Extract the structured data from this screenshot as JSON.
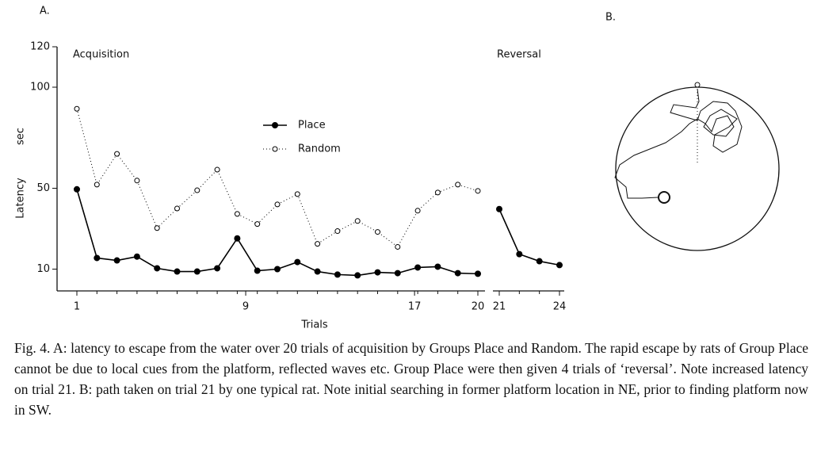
{
  "panel_labels": [
    "A.",
    "B."
  ],
  "chart_data": [
    {
      "type": "line",
      "title": "Acquisition",
      "xlabel": "Trials",
      "ylabel": [
        "Latency",
        "sec"
      ],
      "x": [
        1,
        1.95,
        2.9,
        3.85,
        4.8,
        5.75,
        6.7,
        7.65,
        8.6,
        9.55,
        10.5,
        11.45,
        12.4,
        13.35,
        14.3,
        15.25,
        16.2,
        17.15,
        18.1,
        19.05,
        20
      ],
      "xlim": [
        1,
        20
      ],
      "xticks": [
        1,
        9,
        17,
        20
      ],
      "ylim": [
        0,
        120
      ],
      "yticks": [
        10,
        50,
        100,
        120
      ],
      "legend": "upper center",
      "series": [
        {
          "name": "Place",
          "color": "#000000",
          "style": "solid-filled",
          "values": [
            49.5,
            15.5,
            14.3,
            16.2,
            10.4,
            8.8,
            8.8,
            10.4,
            25.2,
            9.2,
            10,
            13.5,
            8.8,
            7.3,
            6.9,
            8.4,
            8,
            10.8,
            11.2,
            8,
            7.7
          ]
        },
        {
          "name": "Random",
          "color": "#000000",
          "style": "dotted-open",
          "values": [
            89.3,
            51.8,
            67,
            53.8,
            30.3,
            40,
            49,
            59.2,
            37.3,
            32.3,
            42,
            47.1,
            22.5,
            28.8,
            33.8,
            28.4,
            21,
            38.9,
            47.9,
            51.8,
            48.7
          ]
        }
      ]
    },
    {
      "type": "line",
      "title": "Reversal",
      "x": [
        21,
        22,
        23,
        24
      ],
      "xlim": [
        21,
        24
      ],
      "xticks": [
        21,
        24
      ],
      "ylim": [
        0,
        120
      ],
      "series": [
        {
          "color": "#000000",
          "style": "solid-filled",
          "values": [
            39.7,
            17.4,
            13.9,
            12
          ]
        }
      ]
    }
  ],
  "caption": "Fig. 4. A: latency to escape from the water over 20 trials of acquisition by Groups Place and Random. The rapid escape by rats of Group Place cannot be due to local cues from the platform, reflected waves etc. Group Place were then given 4 trials of ‘reversal’. Note increased latency on trial 21. B: path taken on trial 21 by one typical rat. Note initial searching in former platform location in NE, prior to finding platform now in SW."
}
